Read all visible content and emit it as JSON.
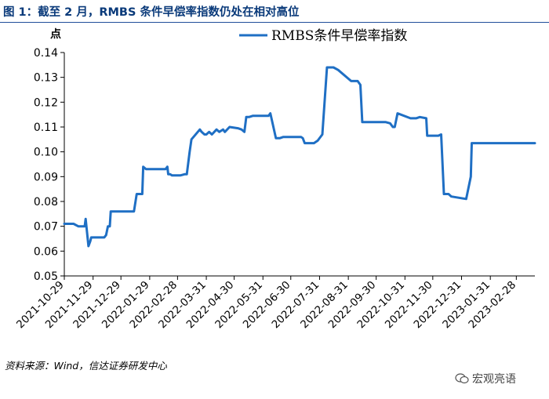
{
  "figure": {
    "title": "图 1：截至 2 月，RMBS 条件早偿率指数仍处在相对高位",
    "source": "资料来源：Wind，信达证券研发中心",
    "watermark": "宏观亮语",
    "watermark_icon": "wechat-icon"
  },
  "colors": {
    "line": "#1f6fc4",
    "title": "#0a3a7a",
    "rule": "#1f4e9a"
  },
  "chart_data": {
    "type": "line",
    "title": "",
    "xlabel": "",
    "ylabel": "点",
    "ylim": [
      0.05,
      0.14
    ],
    "yticks": [
      "0.05",
      "0.06",
      "0.07",
      "0.08",
      "0.09",
      "0.10",
      "0.11",
      "0.12",
      "0.13",
      "0.14"
    ],
    "xticks": [
      "2021-10-29",
      "2021-11-29",
      "2021-12-29",
      "2022-01-29",
      "2022-02-28",
      "2022-03-31",
      "2022-04-30",
      "2022-05-31",
      "2022-06-30",
      "2022-07-31",
      "2022-08-31",
      "2022-09-30",
      "2022-10-31",
      "2022-11-30",
      "2022-12-31",
      "2023-01-31",
      "2023-02-28"
    ],
    "x_range": [
      "2021-10-29",
      "2023-03-20"
    ],
    "legend_position": "top-center",
    "grid": false,
    "series": [
      {
        "name": "RMBS条件早偿率指数",
        "x": [
          "2021-10-29",
          "2021-11-08",
          "2021-11-13",
          "2021-11-20",
          "2021-11-21",
          "2021-11-24",
          "2021-11-26",
          "2021-11-27",
          "2021-11-30",
          "2021-12-11",
          "2021-12-13",
          "2021-12-15",
          "2021-12-17",
          "2021-12-18",
          "2021-12-21",
          "2021-12-27",
          "2021-12-30",
          "2022-01-12",
          "2022-01-15",
          "2022-01-16",
          "2022-01-21",
          "2022-01-22",
          "2022-01-25",
          "2022-01-27",
          "2022-01-28",
          "2022-02-01",
          "2022-02-15",
          "2022-02-17",
          "2022-02-18",
          "2022-02-20",
          "2022-02-22",
          "2022-03-03",
          "2022-03-08",
          "2022-03-10",
          "2022-03-13",
          "2022-03-15",
          "2022-03-24",
          "2022-03-26",
          "2022-03-29",
          "2022-03-31",
          "2022-04-03",
          "2022-04-06",
          "2022-04-11",
          "2022-04-14",
          "2022-04-18",
          "2022-04-20",
          "2022-04-25",
          "2022-05-04",
          "2022-05-08",
          "2022-05-11",
          "2022-05-13",
          "2022-05-16",
          "2022-05-20",
          "2022-06-06",
          "2022-06-08",
          "2022-06-14",
          "2022-06-16",
          "2022-06-18",
          "2022-06-22",
          "2022-07-06",
          "2022-07-11",
          "2022-07-13",
          "2022-07-15",
          "2022-07-18",
          "2022-07-20",
          "2022-07-25",
          "2022-07-29",
          "2022-08-03",
          "2022-08-08",
          "2022-08-10",
          "2022-08-13",
          "2022-08-15",
          "2022-08-20",
          "2022-09-03",
          "2022-09-08",
          "2022-09-10",
          "2022-09-13",
          "2022-09-15",
          "2022-10-10",
          "2022-10-15",
          "2022-10-18",
          "2022-10-20",
          "2022-10-23",
          "2022-11-06",
          "2022-11-09",
          "2022-11-12",
          "2022-11-16",
          "2022-11-23",
          "2022-11-24",
          "2022-11-26",
          "2022-12-01",
          "2022-12-06",
          "2022-12-09",
          "2022-12-12",
          "2022-12-15",
          "2022-12-17",
          "2022-12-20",
          "2023-01-05",
          "2023-01-10",
          "2023-01-11",
          "2023-01-13",
          "2023-01-14",
          "2023-02-10",
          "2023-02-14",
          "2023-02-17",
          "2023-02-19",
          "2023-02-22",
          "2023-03-20"
        ],
        "y": [
          0.071,
          0.071,
          0.07,
          0.07,
          0.073,
          0.062,
          0.064,
          0.0655,
          0.0655,
          0.0655,
          0.0665,
          0.07,
          0.07,
          0.076,
          0.076,
          0.076,
          0.076,
          0.076,
          0.083,
          0.083,
          0.083,
          0.094,
          0.093,
          0.093,
          0.093,
          0.093,
          0.093,
          0.094,
          0.091,
          0.091,
          0.0905,
          0.0905,
          0.091,
          0.091,
          0.1,
          0.105,
          0.109,
          0.108,
          0.107,
          0.107,
          0.108,
          0.107,
          0.109,
          0.108,
          0.109,
          0.108,
          0.11,
          0.1095,
          0.109,
          0.108,
          0.114,
          0.114,
          0.1145,
          0.1145,
          0.1155,
          0.1055,
          0.1055,
          0.1055,
          0.106,
          0.106,
          0.106,
          0.1055,
          0.1035,
          0.1035,
          0.1035,
          0.1035,
          0.1045,
          0.107,
          0.134,
          0.134,
          0.134,
          0.134,
          0.133,
          0.1285,
          0.1285,
          0.1285,
          0.127,
          0.112,
          0.112,
          0.1115,
          0.11,
          0.11,
          0.1155,
          0.1135,
          0.1135,
          0.1135,
          0.114,
          0.1135,
          0.1065,
          0.1065,
          0.1065,
          0.1065,
          0.107,
          0.083,
          0.083,
          0.083,
          0.082,
          0.081,
          0.09,
          0.1035,
          0.1035,
          0.1035,
          0.1035,
          0.1035,
          0.1035,
          0.1035,
          0.1035,
          0.1035
        ]
      }
    ]
  }
}
